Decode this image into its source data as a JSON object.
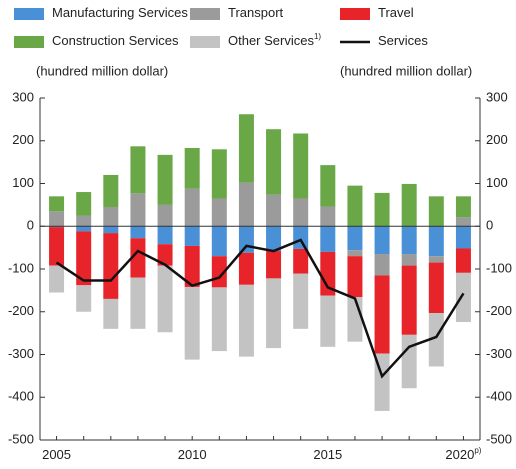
{
  "chart_data": {
    "type": "bar",
    "y_axis_label": "(hundred million dollar)",
    "y2_axis_label": "(hundred million dollar)",
    "categories": [
      "2005",
      null,
      null,
      null,
      null,
      "2010",
      null,
      null,
      null,
      null,
      "2015",
      null,
      null,
      null,
      null,
      "2020"
    ],
    "last_category_note": "p)",
    "ylim": [
      -500,
      300
    ],
    "yticks": [
      -500,
      -400,
      -300,
      -200,
      -100,
      0,
      100,
      200,
      300
    ],
    "y2lim": [
      -500,
      300
    ],
    "y2ticks": [
      -500,
      -400,
      -300,
      -200,
      -100,
      0,
      100,
      200,
      300
    ],
    "series": [
      {
        "name": "Manufacturing Services",
        "color": "#4a90d6",
        "values": [
          -2,
          -12,
          -16,
          -28,
          -42,
          -46,
          -70,
          -62,
          -58,
          -53,
          -60,
          -56,
          -65,
          -65,
          -70,
          -52
        ]
      },
      {
        "name": "Transport",
        "color": "#9b9b9b",
        "values": [
          35,
          25,
          45,
          77,
          50,
          88,
          65,
          102,
          74,
          65,
          46,
          -14,
          -50,
          -27,
          -15,
          21
        ]
      },
      {
        "name": "Travel",
        "color": "#e8242b",
        "values": [
          -90,
          -126,
          -154,
          -92,
          -50,
          -96,
          -73,
          -75,
          -64,
          -58,
          -102,
          -96,
          -183,
          -162,
          -118,
          -57
        ]
      },
      {
        "name": "Construction Services",
        "color": "#6aa746",
        "values": [
          35,
          55,
          75,
          110,
          117,
          95,
          115,
          160,
          153,
          152,
          97,
          95,
          78,
          99,
          70,
          49
        ]
      },
      {
        "name": "Other Services",
        "note": "1)",
        "color": "#c3c3c3",
        "values": [
          -63,
          -62,
          -70,
          -120,
          -156,
          -170,
          -149,
          -168,
          -163,
          -129,
          -120,
          -104,
          -134,
          -125,
          -125,
          -115
        ]
      },
      {
        "name": "Services",
        "type": "line",
        "color": "#111111",
        "values": [
          -85,
          -127,
          -127,
          -58,
          -90,
          -139,
          -120,
          -46,
          -58,
          -32,
          -143,
          -169,
          -351,
          -282,
          -259,
          -157
        ]
      }
    ]
  }
}
